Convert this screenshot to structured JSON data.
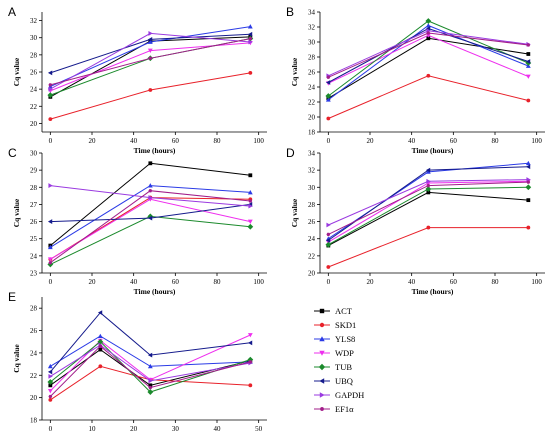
{
  "legend": {
    "entries": [
      "ACT",
      "SKD1",
      "YLS8",
      "WDP",
      "TUB",
      "UBQ",
      "GAPDH",
      "EF1α"
    ],
    "colors": [
      "#000000",
      "#e8212a",
      "#2b3be6",
      "#ee2fee",
      "#1b8a2c",
      "#151b8c",
      "#9a3ae0",
      "#a21d8a"
    ],
    "markers": [
      "square",
      "circle",
      "triangle-up",
      "triangle-down",
      "diamond",
      "triangle-left",
      "triangle-right",
      "hexagon"
    ]
  },
  "chart_data": [
    {
      "type": "line",
      "panel_label": "A",
      "xlabel": "Time (hours)",
      "ylabel": "Cq value",
      "x": [
        0,
        48,
        96
      ],
      "xlim": [
        -4,
        104
      ],
      "ylim": [
        19,
        33
      ],
      "xticks": [
        0,
        20,
        40,
        60,
        80,
        100
      ],
      "yticks": [
        20,
        22,
        24,
        26,
        28,
        30,
        32
      ],
      "series": [
        {
          "name": "ACT",
          "values": [
            23.1,
            29.6,
            30.1
          ]
        },
        {
          "name": "SKD1",
          "values": [
            20.5,
            23.9,
            25.9
          ]
        },
        {
          "name": "YLS8",
          "values": [
            24.3,
            29.5,
            31.3
          ]
        },
        {
          "name": "WDP",
          "values": [
            23.8,
            28.5,
            29.4
          ]
        },
        {
          "name": "TUB",
          "values": [
            23.3,
            27.6,
            29.9
          ]
        },
        {
          "name": "UBQ",
          "values": [
            25.9,
            29.8,
            30.4
          ]
        },
        {
          "name": "GAPDH",
          "values": [
            24.0,
            30.5,
            29.5
          ]
        },
        {
          "name": "EF1α",
          "values": [
            24.5,
            27.6,
            29.9
          ]
        }
      ]
    },
    {
      "type": "line",
      "panel_label": "B",
      "xlabel": "Time (hours)",
      "ylabel": "Cq value",
      "x": [
        0,
        48,
        96
      ],
      "xlim": [
        -4,
        104
      ],
      "ylim": [
        18,
        34
      ],
      "xticks": [
        0,
        20,
        40,
        60,
        80,
        100
      ],
      "yticks": [
        18,
        20,
        22,
        24,
        26,
        28,
        30,
        32,
        34
      ],
      "series": [
        {
          "name": "ACT",
          "values": [
            22.5,
            30.5,
            28.4
          ]
        },
        {
          "name": "SKD1",
          "values": [
            19.8,
            25.5,
            22.2
          ]
        },
        {
          "name": "YLS8",
          "values": [
            22.3,
            32.2,
            26.8
          ]
        },
        {
          "name": "WDP",
          "values": [
            24.5,
            30.9,
            25.4
          ]
        },
        {
          "name": "TUB",
          "values": [
            22.8,
            32.8,
            27.2
          ]
        },
        {
          "name": "UBQ",
          "values": [
            24.6,
            31.8,
            27.4
          ]
        },
        {
          "name": "GAPDH",
          "values": [
            25.5,
            31.5,
            29.7
          ]
        },
        {
          "name": "EF1α",
          "values": [
            25.3,
            31.2,
            29.6
          ]
        }
      ]
    },
    {
      "type": "line",
      "panel_label": "C",
      "xlabel": "Time (hours)",
      "ylabel": "Cq value",
      "x": [
        0,
        48,
        96
      ],
      "xlim": [
        -4,
        104
      ],
      "ylim": [
        23,
        30
      ],
      "xticks": [
        0,
        20,
        40,
        60,
        80,
        100
      ],
      "yticks": [
        23,
        24,
        25,
        26,
        27,
        28,
        29,
        30
      ],
      "series": [
        {
          "name": "ACT",
          "values": [
            24.6,
            29.4,
            28.7
          ]
        },
        {
          "name": "SKD1",
          "values": [
            23.8,
            27.4,
            27.3
          ]
        },
        {
          "name": "YLS8",
          "values": [
            24.5,
            28.1,
            27.7
          ]
        },
        {
          "name": "WDP",
          "values": [
            23.8,
            27.3,
            26.0
          ]
        },
        {
          "name": "TUB",
          "values": [
            23.5,
            26.3,
            25.7
          ]
        },
        {
          "name": "UBQ",
          "values": [
            26.0,
            26.2,
            27.0
          ]
        },
        {
          "name": "GAPDH",
          "values": [
            28.1,
            27.4,
            26.9
          ]
        },
        {
          "name": "EF1α",
          "values": [
            23.6,
            27.8,
            27.2
          ]
        }
      ]
    },
    {
      "type": "line",
      "panel_label": "D",
      "xlabel": "Time (hours)",
      "ylabel": "Cq value",
      "x": [
        0,
        48,
        96
      ],
      "xlim": [
        -4,
        104
      ],
      "ylim": [
        20,
        34
      ],
      "xticks": [
        0,
        20,
        40,
        60,
        80,
        100
      ],
      "yticks": [
        20,
        22,
        24,
        26,
        28,
        30,
        32,
        34
      ],
      "series": [
        {
          "name": "ACT",
          "values": [
            23.2,
            29.4,
            28.5
          ]
        },
        {
          "name": "SKD1",
          "values": [
            20.7,
            25.3,
            25.3
          ]
        },
        {
          "name": "YLS8",
          "values": [
            24.0,
            31.8,
            32.8
          ]
        },
        {
          "name": "WDP",
          "values": [
            23.6,
            30.5,
            30.7
          ]
        },
        {
          "name": "TUB",
          "values": [
            23.3,
            29.8,
            30.0
          ]
        },
        {
          "name": "UBQ",
          "values": [
            23.8,
            32.0,
            32.4
          ]
        },
        {
          "name": "GAPDH",
          "values": [
            25.6,
            30.7,
            30.9
          ]
        },
        {
          "name": "EF1α",
          "values": [
            24.5,
            30.2,
            30.6
          ]
        }
      ]
    },
    {
      "type": "line",
      "panel_label": "E",
      "xlabel": "",
      "ylabel": "Cq value",
      "x": [
        0,
        12,
        24,
        48
      ],
      "xlim": [
        -2,
        52
      ],
      "ylim": [
        18,
        29
      ],
      "xticks": [
        0,
        10,
        20,
        30,
        40,
        50
      ],
      "yticks": [
        18,
        20,
        22,
        24,
        26,
        28
      ],
      "series": [
        {
          "name": "ACT",
          "values": [
            21.1,
            24.3,
            21.1,
            23.3
          ]
        },
        {
          "name": "SKD1",
          "values": [
            19.8,
            22.8,
            21.6,
            21.1
          ]
        },
        {
          "name": "YLS8",
          "values": [
            22.8,
            25.5,
            22.8,
            23.2
          ]
        },
        {
          "name": "WDP",
          "values": [
            20.6,
            25.1,
            21.6,
            25.6
          ]
        },
        {
          "name": "TUB",
          "values": [
            21.4,
            25.0,
            20.5,
            23.4
          ]
        },
        {
          "name": "UBQ",
          "values": [
            22.3,
            27.6,
            23.8,
            24.9
          ]
        },
        {
          "name": "GAPDH",
          "values": [
            21.9,
            24.7,
            21.5,
            23.1
          ]
        },
        {
          "name": "EF1α",
          "values": [
            20.1,
            24.6,
            20.9,
            23.2
          ]
        }
      ]
    }
  ]
}
